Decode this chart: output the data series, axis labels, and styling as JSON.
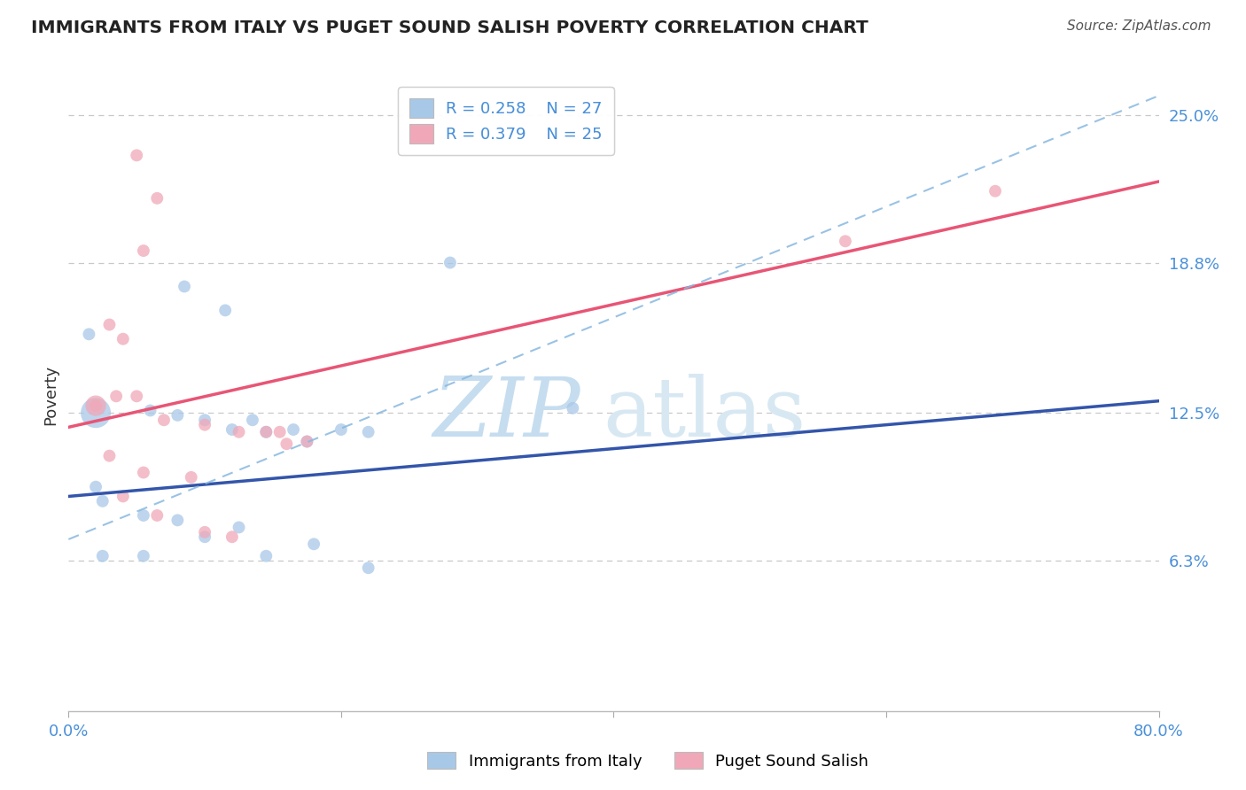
{
  "title": "IMMIGRANTS FROM ITALY VS PUGET SOUND SALISH POVERTY CORRELATION CHART",
  "source": "Source: ZipAtlas.com",
  "ylabel": "Poverty",
  "xlim": [
    0.0,
    0.8
  ],
  "ylim": [
    0.0,
    0.265
  ],
  "x_ticks": [
    0.0,
    0.2,
    0.4,
    0.6,
    0.8
  ],
  "x_tick_labels": [
    "0.0%",
    "",
    "",
    "",
    "80.0%"
  ],
  "y_ticks_right": [
    0.063,
    0.125,
    0.188,
    0.25
  ],
  "y_tick_labels_right": [
    "6.3%",
    "12.5%",
    "18.8%",
    "25.0%"
  ],
  "grid_color": "#c8c8c8",
  "background_color": "#ffffff",
  "legend_R1": "R = 0.258",
  "legend_N1": "N = 27",
  "legend_R2": "R = 0.379",
  "legend_N2": "N = 25",
  "blue_color": "#a8c8e8",
  "pink_color": "#f0a8b8",
  "blue_line_color": "#3355aa",
  "pink_line_color": "#e85575",
  "blue_dashed_color": "#88b8e0",
  "blue_scatter": [
    [
      0.02,
      0.125
    ],
    [
      0.015,
      0.158
    ],
    [
      0.085,
      0.178
    ],
    [
      0.115,
      0.168
    ],
    [
      0.28,
      0.188
    ],
    [
      0.06,
      0.126
    ],
    [
      0.08,
      0.124
    ],
    [
      0.1,
      0.122
    ],
    [
      0.12,
      0.118
    ],
    [
      0.135,
      0.122
    ],
    [
      0.145,
      0.117
    ],
    [
      0.165,
      0.118
    ],
    [
      0.175,
      0.113
    ],
    [
      0.2,
      0.118
    ],
    [
      0.22,
      0.117
    ],
    [
      0.37,
      0.127
    ],
    [
      0.02,
      0.094
    ],
    [
      0.025,
      0.088
    ],
    [
      0.055,
      0.082
    ],
    [
      0.08,
      0.08
    ],
    [
      0.125,
      0.077
    ],
    [
      0.1,
      0.073
    ],
    [
      0.18,
      0.07
    ],
    [
      0.145,
      0.065
    ],
    [
      0.22,
      0.06
    ],
    [
      0.025,
      0.065
    ],
    [
      0.055,
      0.065
    ]
  ],
  "blue_scatter_sizes": [
    600,
    100,
    100,
    100,
    100,
    100,
    100,
    100,
    100,
    100,
    100,
    100,
    100,
    100,
    100,
    100,
    100,
    100,
    100,
    100,
    100,
    100,
    100,
    100,
    100,
    100,
    100
  ],
  "pink_scatter": [
    [
      0.05,
      0.233
    ],
    [
      0.065,
      0.215
    ],
    [
      0.055,
      0.193
    ],
    [
      0.03,
      0.162
    ],
    [
      0.04,
      0.156
    ],
    [
      0.02,
      0.128
    ],
    [
      0.035,
      0.132
    ],
    [
      0.05,
      0.132
    ],
    [
      0.07,
      0.122
    ],
    [
      0.1,
      0.12
    ],
    [
      0.125,
      0.117
    ],
    [
      0.145,
      0.117
    ],
    [
      0.155,
      0.117
    ],
    [
      0.16,
      0.112
    ],
    [
      0.175,
      0.113
    ],
    [
      0.02,
      0.128
    ],
    [
      0.03,
      0.107
    ],
    [
      0.055,
      0.1
    ],
    [
      0.09,
      0.098
    ],
    [
      0.04,
      0.09
    ],
    [
      0.065,
      0.082
    ],
    [
      0.1,
      0.075
    ],
    [
      0.12,
      0.073
    ],
    [
      0.57,
      0.197
    ],
    [
      0.68,
      0.218
    ]
  ],
  "pink_scatter_sizes": [
    100,
    100,
    100,
    100,
    100,
    280,
    100,
    100,
    100,
    100,
    100,
    100,
    100,
    100,
    100,
    100,
    100,
    100,
    100,
    100,
    100,
    100,
    100,
    100,
    100
  ],
  "blue_line": [
    [
      0.0,
      0.09
    ],
    [
      0.8,
      0.13
    ]
  ],
  "pink_line": [
    [
      0.0,
      0.119
    ],
    [
      0.8,
      0.222
    ]
  ],
  "blue_dashed_line": [
    [
      0.0,
      0.072
    ],
    [
      0.8,
      0.258
    ]
  ]
}
